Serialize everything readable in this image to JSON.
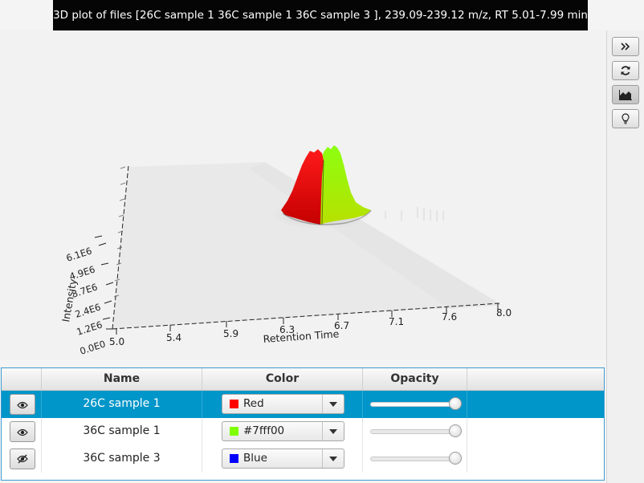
{
  "title": "3D plot of files [26C sample 1 36C sample 1 36C sample 3 ], 239.09-239.12 m/z, RT 5.01-7.99 min",
  "plot": {
    "x_axis_label": "Retention Time",
    "y_axis_label": "Intensity",
    "x_ticks": [
      "5.0",
      "5.4",
      "5.9",
      "6.3",
      "6.7",
      "7.1",
      "7.6",
      "8.0"
    ],
    "y_ticks": [
      "0.0E0",
      "1.2E6",
      "2.4E6",
      "3.7E6",
      "4.9E6",
      "6.1E6"
    ]
  },
  "toolbar": {
    "buttons": [
      {
        "icon": "double-chevron-right-icon"
      },
      {
        "icon": "refresh-icon"
      },
      {
        "icon": "area-chart-icon"
      },
      {
        "icon": "lightbulb-icon"
      }
    ]
  },
  "table": {
    "columns": [
      "Name",
      "Color",
      "Opacity"
    ],
    "rows": [
      {
        "name": "26C sample 1",
        "color_label": "Red",
        "color": "#ff0000",
        "opacity": 1.0,
        "selected": true,
        "visibility_icon": "eye-icon"
      },
      {
        "name": "36C sample 1",
        "color_label": "#7fff00",
        "color": "#7fff00",
        "opacity": 1.0,
        "selected": false,
        "visibility_icon": "eye-icon"
      },
      {
        "name": "36C sample 3",
        "color_label": "Blue",
        "color": "#0000ff",
        "opacity": 1.0,
        "selected": false,
        "visibility_icon": "eye-off-icon"
      }
    ]
  },
  "colors": {
    "selection": "#0096c9",
    "title_bar": "#050505"
  }
}
